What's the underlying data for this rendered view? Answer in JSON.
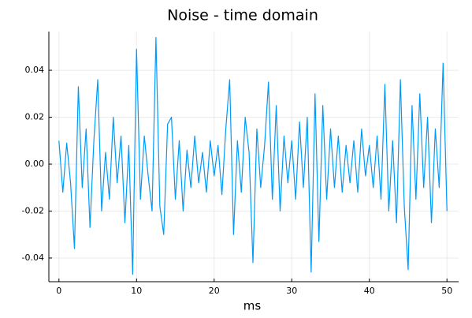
{
  "chart_data": {
    "type": "line",
    "title": "Noise - time domain",
    "xlabel": "ms",
    "x": [
      0,
      0.5,
      1,
      1.5,
      2,
      2.5,
      3,
      3.5,
      4,
      4.5,
      5,
      5.5,
      6,
      6.5,
      7,
      7.5,
      8,
      8.5,
      9,
      9.5,
      10,
      10.5,
      11,
      11.5,
      12,
      12.5,
      13,
      13.5,
      14,
      14.5,
      15,
      15.5,
      16,
      16.5,
      17,
      17.5,
      18,
      18.5,
      19,
      19.5,
      20,
      20.5,
      21,
      21.5,
      22,
      22.5,
      23,
      23.5,
      24,
      24.5,
      25,
      25.5,
      26,
      26.5,
      27,
      27.5,
      28,
      28.5,
      29,
      29.5,
      30,
      30.5,
      31,
      31.5,
      32,
      32.5,
      33,
      33.5,
      34,
      34.5,
      35,
      35.5,
      36,
      36.5,
      37,
      37.5,
      38,
      38.5,
      39,
      39.5,
      40,
      40.5,
      41,
      41.5,
      42,
      42.5,
      43,
      43.5,
      44,
      44.5,
      45,
      45.5,
      46,
      46.5,
      47,
      47.5,
      48,
      48.5,
      49,
      49.5,
      50
    ],
    "series": [
      {
        "color": "#009af9",
        "values": [
          0.01,
          -0.012,
          0.009,
          -0.008,
          -0.036,
          0.033,
          -0.01,
          0.015,
          -0.027,
          0.01,
          0.036,
          -0.02,
          0.005,
          -0.015,
          0.02,
          -0.008,
          0.012,
          -0.025,
          0.008,
          -0.047,
          0.049,
          -0.015,
          0.012,
          -0.005,
          -0.02,
          0.054,
          -0.018,
          -0.03,
          0.017,
          0.02,
          -0.015,
          0.01,
          -0.02,
          0.006,
          -0.01,
          0.012,
          -0.008,
          0.005,
          -0.012,
          0.01,
          -0.005,
          0.008,
          -0.013,
          0.015,
          0.036,
          -0.03,
          0.01,
          -0.012,
          0.02,
          0.005,
          -0.042,
          0.015,
          -0.01,
          0.008,
          0.035,
          -0.015,
          0.025,
          -0.02,
          0.012,
          -0.008,
          0.01,
          -0.015,
          0.018,
          -0.01,
          0.02,
          -0.046,
          0.03,
          -0.033,
          0.025,
          -0.015,
          0.015,
          -0.01,
          0.012,
          -0.012,
          0.008,
          -0.008,
          0.01,
          -0.012,
          0.015,
          -0.005,
          0.008,
          -0.01,
          0.012,
          -0.015,
          0.034,
          -0.02,
          0.01,
          -0.025,
          0.036,
          -0.018,
          -0.045,
          0.025,
          -0.015,
          0.03,
          -0.01,
          0.02,
          -0.025,
          0.015,
          -0.01,
          0.043,
          -0.02
        ]
      }
    ],
    "xlim": [
      -1.3,
      51.5
    ],
    "xticks": [
      0,
      10,
      20,
      30,
      40,
      50
    ],
    "ylim": [
      -0.0501,
      0.0565
    ],
    "yticks": [
      -0.04,
      -0.02,
      {
        "value": 0,
        "label": "0.00"
      },
      0.02,
      0.04
    ],
    "grid": true
  }
}
